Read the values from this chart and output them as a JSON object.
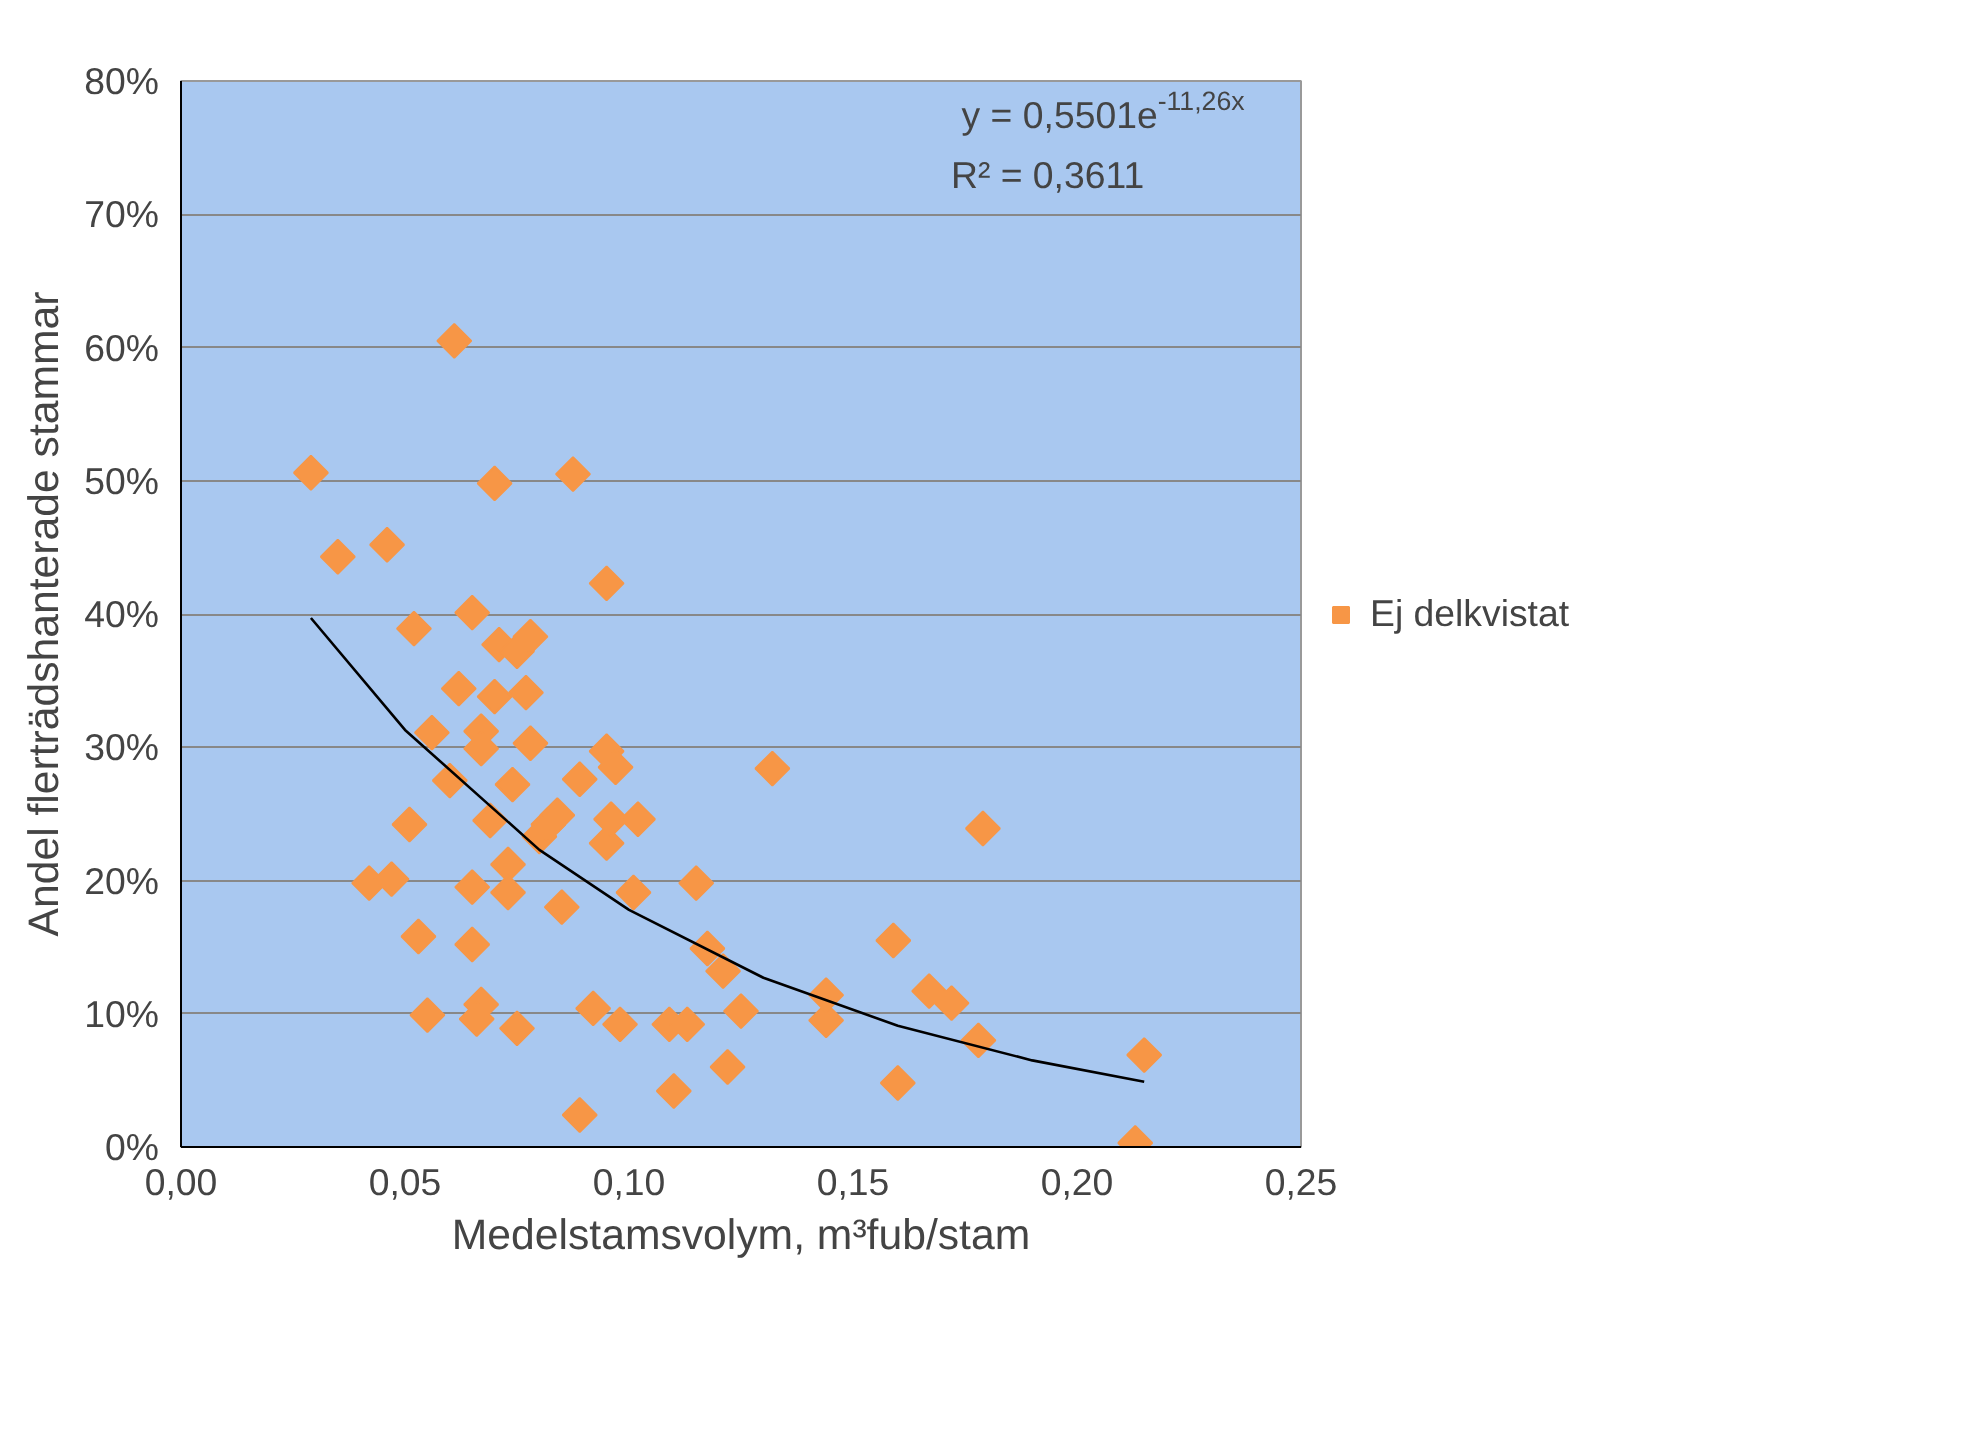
{
  "chart_data": {
    "type": "scatter",
    "xlabel": "Medelstamsvolym, m³fub/stam",
    "ylabel": "Andel flerträdshanterade stammar",
    "xlim": [
      0,
      0.25
    ],
    "xticks": [
      {
        "value": 0,
        "label": "0,00"
      },
      {
        "value": 0.05,
        "label": "0,05"
      },
      {
        "value": 0.1,
        "label": "0,10"
      },
      {
        "value": 0.15,
        "label": "0,15"
      },
      {
        "value": 0.2,
        "label": "0,20"
      },
      {
        "value": 0.25,
        "label": "0,25"
      }
    ],
    "ylim": [
      0,
      80
    ],
    "yticks": [
      {
        "value": 0,
        "label": "0%"
      },
      {
        "value": 10,
        "label": "10%"
      },
      {
        "value": 20,
        "label": "20%"
      },
      {
        "value": 30,
        "label": "30%"
      },
      {
        "value": 40,
        "label": "40%"
      },
      {
        "value": 50,
        "label": "50%"
      },
      {
        "value": 60,
        "label": "60%"
      },
      {
        "value": 70,
        "label": "70%"
      },
      {
        "value": 80,
        "label": "80%"
      }
    ],
    "grid": "y",
    "legend": "right",
    "marker": "diamond",
    "annotations": [
      "y = 0,5501e$^{-11,26x}$",
      "R² = 0,3611"
    ],
    "series": [
      {
        "name": "Ej delkvistat",
        "color": "#f79646",
        "x": [
          0.029,
          0.035,
          0.046,
          0.042,
          0.047,
          0.052,
          0.051,
          0.053,
          0.055,
          0.056,
          0.06,
          0.061,
          0.062,
          0.065,
          0.065,
          0.065,
          0.067,
          0.067,
          0.067,
          0.066,
          0.07,
          0.069,
          0.07,
          0.071,
          0.073,
          0.073,
          0.074,
          0.075,
          0.075,
          0.078,
          0.077,
          0.078,
          0.08,
          0.082,
          0.084,
          0.085,
          0.0875,
          0.089,
          0.092,
          0.089,
          0.095,
          0.095,
          0.095,
          0.097,
          0.096,
          0.098,
          0.102,
          0.101,
          0.109,
          0.11,
          0.113,
          0.115,
          0.1175,
          0.121,
          0.122,
          0.125,
          0.132,
          0.144,
          0.144,
          0.159,
          0.16,
          0.167,
          0.172,
          0.178,
          0.179,
          0.215,
          0.213
        ],
        "values": [
          50.6,
          44.3,
          45.2,
          19.8,
          20.1,
          38.9,
          24.2,
          15.8,
          9.9,
          31.1,
          27.5,
          60.5,
          34.4,
          40.1,
          19.5,
          15.2,
          31.2,
          29.9,
          10.7,
          9.6,
          33.8,
          24.5,
          49.8,
          37.7,
          21.2,
          19.1,
          27.2,
          37.2,
          8.9,
          38.3,
          34.1,
          30.3,
          23.3,
          24.2,
          24.9,
          18.0,
          50.5,
          27.6,
          10.4,
          2.4,
          42.3,
          22.8,
          29.7,
          28.5,
          24.6,
          9.2,
          24.6,
          19.1,
          9.2,
          4.2,
          9.2,
          19.8,
          14.9,
          13.2,
          6.0,
          10.2,
          28.4,
          9.5,
          11.4,
          15.5,
          4.8,
          11.7,
          10.8,
          8.0,
          23.9,
          6.9,
          0.3
        ]
      },
      {
        "type": "line",
        "color": "#000000",
        "marker": "none",
        "x": [
          0.029,
          0.05,
          0.08,
          0.1,
          0.13,
          0.16,
          0.19,
          0.215
        ],
        "values": [
          39.7,
          31.3,
          22.3,
          17.8,
          12.7,
          9.1,
          6.5,
          4.9
        ]
      }
    ]
  }
}
